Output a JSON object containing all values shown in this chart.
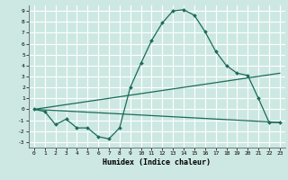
{
  "title": "",
  "xlabel": "Humidex (Indice chaleur)",
  "background_color": "#cde8e2",
  "grid_color": "#ffffff",
  "line_color": "#1a6b5a",
  "xlim": [
    -0.5,
    23.5
  ],
  "ylim": [
    -3.5,
    9.5
  ],
  "xticks": [
    0,
    1,
    2,
    3,
    4,
    5,
    6,
    7,
    8,
    9,
    10,
    11,
    12,
    13,
    14,
    15,
    16,
    17,
    18,
    19,
    20,
    21,
    22,
    23
  ],
  "yticks": [
    -3,
    -2,
    -1,
    0,
    1,
    2,
    3,
    4,
    5,
    6,
    7,
    8,
    9
  ],
  "curve1_x": [
    0,
    1,
    2,
    3,
    4,
    5,
    6,
    7,
    8,
    9,
    10,
    11,
    12,
    13,
    14,
    15,
    16,
    17,
    18,
    19,
    20,
    21,
    22,
    23
  ],
  "curve1_y": [
    0.0,
    -0.2,
    -1.4,
    -0.9,
    -1.7,
    -1.7,
    -2.5,
    -2.7,
    -1.7,
    2.0,
    4.2,
    6.3,
    7.9,
    9.0,
    9.1,
    8.6,
    7.1,
    5.3,
    4.0,
    3.3,
    3.1,
    1.0,
    -1.2,
    -1.2
  ],
  "line1_x": [
    0,
    23
  ],
  "line1_y": [
    0.0,
    -1.2
  ],
  "line2_x": [
    0,
    23
  ],
  "line2_y": [
    0.0,
    3.3
  ]
}
